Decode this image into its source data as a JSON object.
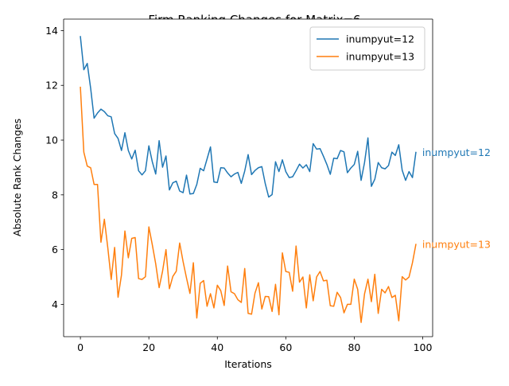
{
  "chart_data": {
    "type": "line",
    "title": "Firm Ranking Changes for Matrix=6",
    "xlabel": "Iterations",
    "ylabel": "Absolute Rank Changes",
    "xlim": [
      -4.9,
      102.9
    ],
    "ylim": [
      2.82,
      14.42
    ],
    "xticks": [
      0,
      20,
      40,
      60,
      80,
      100
    ],
    "yticks": [
      4,
      6,
      8,
      10,
      12,
      14
    ],
    "grid": false,
    "legend_position": "top-right",
    "x": [
      0,
      1,
      2,
      3,
      4,
      5,
      6,
      7,
      8,
      9,
      10,
      11,
      12,
      13,
      14,
      15,
      16,
      17,
      18,
      19,
      20,
      21,
      22,
      23,
      24,
      25,
      26,
      27,
      28,
      29,
      30,
      31,
      32,
      33,
      34,
      35,
      36,
      37,
      38,
      39,
      40,
      41,
      42,
      43,
      44,
      45,
      46,
      47,
      48,
      49,
      50,
      51,
      52,
      53,
      54,
      55,
      56,
      57,
      58,
      59,
      60,
      61,
      62,
      63,
      64,
      65,
      66,
      67,
      68,
      69,
      70,
      71,
      72,
      73,
      74,
      75,
      76,
      77,
      78,
      79,
      80,
      81,
      82,
      83,
      84,
      85,
      86,
      87,
      88,
      89,
      90,
      91,
      92,
      93,
      94,
      95,
      96,
      97,
      98
    ],
    "series": [
      {
        "name": "inumpyut=12",
        "color": "#1f77b4",
        "end_label": "inumpyut=12",
        "values": [
          13.78,
          12.57,
          12.8,
          11.89,
          10.8,
          10.99,
          11.13,
          11.04,
          10.89,
          10.85,
          10.24,
          10.06,
          9.62,
          10.27,
          9.62,
          9.31,
          9.63,
          8.88,
          8.73,
          8.88,
          9.79,
          9.21,
          8.76,
          9.98,
          9.01,
          9.42,
          8.18,
          8.44,
          8.5,
          8.14,
          8.08,
          8.72,
          8.03,
          8.05,
          8.38,
          8.97,
          8.88,
          9.31,
          9.75,
          8.47,
          8.45,
          8.99,
          8.98,
          8.8,
          8.66,
          8.76,
          8.82,
          8.42,
          8.87,
          9.47,
          8.74,
          8.89,
          8.99,
          9.03,
          8.41,
          7.92,
          8.01,
          9.21,
          8.85,
          9.28,
          8.85,
          8.63,
          8.66,
          8.88,
          9.12,
          8.98,
          9.1,
          8.85,
          9.87,
          9.67,
          9.69,
          9.41,
          9.11,
          8.75,
          9.34,
          9.32,
          9.62,
          9.57,
          8.81,
          8.98,
          9.11,
          9.59,
          8.53,
          9.18,
          10.08,
          8.31,
          8.57,
          9.18,
          8.99,
          8.95,
          9.07,
          9.56,
          9.44,
          9.83,
          8.9,
          8.53,
          8.85,
          8.63,
          9.55
        ]
      },
      {
        "name": "inumpyut=13",
        "color": "#ff7f0e",
        "end_label": "inumpyut=13",
        "values": [
          11.93,
          9.56,
          9.05,
          8.99,
          8.38,
          8.38,
          6.27,
          7.11,
          6.07,
          4.91,
          6.08,
          4.26,
          5.07,
          6.68,
          5.7,
          6.41,
          6.44,
          4.94,
          4.91,
          5.01,
          6.83,
          6.18,
          5.48,
          4.61,
          5.21,
          6.0,
          4.57,
          5.02,
          5.21,
          6.24,
          5.56,
          4.96,
          4.4,
          5.52,
          3.5,
          4.77,
          4.87,
          3.93,
          4.39,
          3.87,
          4.7,
          4.5,
          3.96,
          5.4,
          4.46,
          4.39,
          4.17,
          4.07,
          5.31,
          3.67,
          3.64,
          4.41,
          4.79,
          3.83,
          4.29,
          4.28,
          3.74,
          4.73,
          3.62,
          5.88,
          5.2,
          5.17,
          4.48,
          6.13,
          4.81,
          5.0,
          3.87,
          5.08,
          4.13,
          5.0,
          5.2,
          4.86,
          4.88,
          3.95,
          3.93,
          4.44,
          4.25,
          3.69,
          4.0,
          4.0,
          4.92,
          4.55,
          3.34,
          4.38,
          4.92,
          4.1,
          5.1,
          3.67,
          4.55,
          4.42,
          4.65,
          4.25,
          4.33,
          3.4,
          5.01,
          4.89,
          5.0,
          5.52,
          6.19
        ]
      }
    ]
  }
}
